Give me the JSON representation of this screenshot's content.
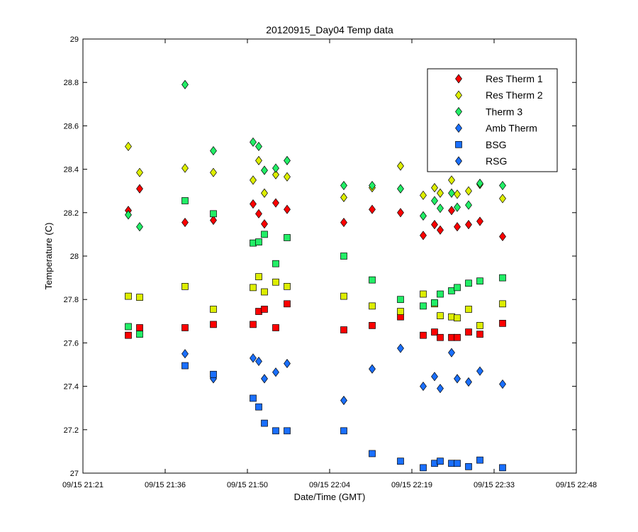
{
  "chart_data": {
    "type": "scatter",
    "title": "20120915_Day04 Temp data",
    "xlabel": "Date/Time (GMT)",
    "ylabel": "Temperature (C)",
    "xlim": [
      "09/15 21:21",
      "09/15 22:48"
    ],
    "ylim": [
      27,
      29
    ],
    "x_tick_labels": [
      "09/15 21:21",
      "09/15 21:36",
      "09/15 21:50",
      "09/15 22:04",
      "09/15 22:19",
      "09/15 22:33",
      "09/15 22:48"
    ],
    "y_tick_labels": [
      "27",
      "27.2",
      "27.4",
      "27.6",
      "27.8",
      "28",
      "28.2",
      "28.4",
      "28.6",
      "28.8",
      "29"
    ],
    "grid": false,
    "legend_position": "top-right",
    "series": [
      {
        "name": "Res Therm 1",
        "color": "#ff0000",
        "marker": "diamond",
        "points": [
          [
            "09/15 21:29",
            28.21
          ],
          [
            "09/15 21:31",
            28.31
          ],
          [
            "09/15 21:39",
            28.155
          ],
          [
            "09/15 21:44",
            28.165
          ],
          [
            "09/15 21:51",
            28.24
          ],
          [
            "09/15 21:52",
            28.195
          ],
          [
            "09/15 21:53",
            28.148
          ],
          [
            "09/15 21:55",
            28.245
          ],
          [
            "09/15 21:57",
            28.215
          ],
          [
            "09/15 22:07",
            28.155
          ],
          [
            "09/15 22:12",
            28.215
          ],
          [
            "09/15 22:17",
            28.2
          ],
          [
            "09/15 22:21",
            28.095
          ],
          [
            "09/15 22:23",
            28.145
          ],
          [
            "09/15 22:24",
            28.12
          ],
          [
            "09/15 22:26",
            28.21
          ],
          [
            "09/15 22:27",
            28.135
          ],
          [
            "09/15 22:29",
            28.145
          ],
          [
            "09/15 22:31",
            28.16
          ],
          [
            "09/15 22:35",
            28.09
          ]
        ]
      },
      {
        "name": "Res Therm 2",
        "color": "#ddee00",
        "marker": "diamond",
        "points": [
          [
            "09/15 21:29",
            28.505
          ],
          [
            "09/15 21:31",
            28.385
          ],
          [
            "09/15 21:39",
            28.405
          ],
          [
            "09/15 21:44",
            28.385
          ],
          [
            "09/15 21:51",
            28.35
          ],
          [
            "09/15 21:52",
            28.44
          ],
          [
            "09/15 21:53",
            28.29
          ],
          [
            "09/15 21:55",
            28.375
          ],
          [
            "09/15 21:57",
            28.365
          ],
          [
            "09/15 22:07",
            28.27
          ],
          [
            "09/15 22:12",
            28.315
          ],
          [
            "09/15 22:17",
            28.415
          ],
          [
            "09/15 22:21",
            28.28
          ],
          [
            "09/15 22:23",
            28.315
          ],
          [
            "09/15 22:24",
            28.29
          ],
          [
            "09/15 22:26",
            28.35
          ],
          [
            "09/15 22:27",
            28.285
          ],
          [
            "09/15 22:29",
            28.3
          ],
          [
            "09/15 22:31",
            28.33
          ],
          [
            "09/15 22:35",
            28.265
          ]
        ]
      },
      {
        "name": "Therm 3",
        "color": "#22ee66",
        "marker": "diamond",
        "points": [
          [
            "09/15 21:29",
            28.19
          ],
          [
            "09/15 21:31",
            28.135
          ],
          [
            "09/15 21:39",
            28.79
          ],
          [
            "09/15 21:44",
            28.485
          ],
          [
            "09/15 21:51",
            28.525
          ],
          [
            "09/15 21:52",
            28.505
          ],
          [
            "09/15 21:53",
            28.395
          ],
          [
            "09/15 21:55",
            28.405
          ],
          [
            "09/15 21:57",
            28.44
          ],
          [
            "09/15 22:07",
            28.325
          ],
          [
            "09/15 22:12",
            28.325
          ],
          [
            "09/15 22:17",
            28.31
          ],
          [
            "09/15 22:21",
            28.185
          ],
          [
            "09/15 22:23",
            28.255
          ],
          [
            "09/15 22:24",
            28.22
          ],
          [
            "09/15 22:26",
            28.29
          ],
          [
            "09/15 22:27",
            28.225
          ],
          [
            "09/15 22:29",
            28.235
          ],
          [
            "09/15 22:31",
            28.335
          ],
          [
            "09/15 22:35",
            28.325
          ]
        ]
      },
      {
        "name": "Amb Therm",
        "color": "#1a6fff",
        "marker": "diamond",
        "points": [
          [
            "09/15 21:39",
            27.55
          ],
          [
            "09/15 21:44",
            27.435
          ],
          [
            "09/15 21:51",
            27.53
          ],
          [
            "09/15 21:52",
            27.515
          ],
          [
            "09/15 21:53",
            27.435
          ],
          [
            "09/15 21:55",
            27.465
          ],
          [
            "09/15 21:57",
            27.505
          ],
          [
            "09/15 22:07",
            27.335
          ],
          [
            "09/15 22:12",
            27.48
          ],
          [
            "09/15 22:17",
            27.575
          ],
          [
            "09/15 22:21",
            27.4
          ],
          [
            "09/15 22:23",
            27.445
          ],
          [
            "09/15 22:24",
            27.39
          ],
          [
            "09/15 22:26",
            27.555
          ],
          [
            "09/15 22:27",
            27.435
          ],
          [
            "09/15 22:29",
            27.42
          ],
          [
            "09/15 22:31",
            27.47
          ],
          [
            "09/15 22:35",
            27.41
          ]
        ]
      },
      {
        "name": "BSG",
        "color": "#1a6fff",
        "marker": "square",
        "points": [
          [
            "09/15 21:39",
            27.495
          ],
          [
            "09/15 21:44",
            27.455
          ],
          [
            "09/15 21:51",
            27.345
          ],
          [
            "09/15 21:52",
            27.305
          ],
          [
            "09/15 21:53",
            27.23
          ],
          [
            "09/15 21:55",
            27.195
          ],
          [
            "09/15 21:57",
            27.195
          ],
          [
            "09/15 22:07",
            27.195
          ],
          [
            "09/15 22:12",
            27.09
          ],
          [
            "09/15 22:17",
            27.055
          ],
          [
            "09/15 22:21",
            27.025
          ],
          [
            "09/15 22:23",
            27.045
          ],
          [
            "09/15 22:24",
            27.055
          ],
          [
            "09/15 22:26",
            27.045
          ],
          [
            "09/15 22:27",
            27.045
          ],
          [
            "09/15 22:29",
            27.03
          ],
          [
            "09/15 22:31",
            27.06
          ],
          [
            "09/15 22:35",
            27.025
          ]
        ]
      },
      {
        "name": "RSG",
        "color": "#1a6fff",
        "marker": "diamond",
        "points": []
      },
      {
        "name": "",
        "color": "#ff0000",
        "marker": "square",
        "points": [
          [
            "09/15 21:29",
            27.635
          ],
          [
            "09/15 21:31",
            27.67
          ],
          [
            "09/15 21:39",
            27.67
          ],
          [
            "09/15 21:44",
            27.685
          ],
          [
            "09/15 21:51",
            27.685
          ],
          [
            "09/15 21:52",
            27.745
          ],
          [
            "09/15 21:53",
            27.755
          ],
          [
            "09/15 21:55",
            27.67
          ],
          [
            "09/15 21:57",
            27.78
          ],
          [
            "09/15 22:07",
            27.66
          ],
          [
            "09/15 22:12",
            27.68
          ],
          [
            "09/15 22:17",
            27.72
          ],
          [
            "09/15 22:21",
            27.635
          ],
          [
            "09/15 22:23",
            27.65
          ],
          [
            "09/15 22:24",
            27.625
          ],
          [
            "09/15 22:26",
            27.625
          ],
          [
            "09/15 22:27",
            27.625
          ],
          [
            "09/15 22:29",
            27.65
          ],
          [
            "09/15 22:31",
            27.64
          ],
          [
            "09/15 22:35",
            27.69
          ]
        ]
      },
      {
        "name": "",
        "color": "#ddee00",
        "marker": "square",
        "points": [
          [
            "09/15 21:29",
            27.815
          ],
          [
            "09/15 21:31",
            27.81
          ],
          [
            "09/15 21:39",
            27.86
          ],
          [
            "09/15 21:44",
            27.755
          ],
          [
            "09/15 21:51",
            27.855
          ],
          [
            "09/15 21:52",
            27.905
          ],
          [
            "09/15 21:53",
            27.835
          ],
          [
            "09/15 21:55",
            27.88
          ],
          [
            "09/15 21:57",
            27.86
          ],
          [
            "09/15 22:07",
            27.815
          ],
          [
            "09/15 22:12",
            27.77
          ],
          [
            "09/15 22:17",
            27.745
          ],
          [
            "09/15 22:21",
            27.825
          ],
          [
            "09/15 22:23",
            27.78
          ],
          [
            "09/15 22:24",
            27.725
          ],
          [
            "09/15 22:26",
            27.72
          ],
          [
            "09/15 22:27",
            27.715
          ],
          [
            "09/15 22:29",
            27.755
          ],
          [
            "09/15 22:31",
            27.68
          ],
          [
            "09/15 22:35",
            27.78
          ]
        ]
      },
      {
        "name": "",
        "color": "#22ee66",
        "marker": "square",
        "points": [
          [
            "09/15 21:29",
            27.675
          ],
          [
            "09/15 21:31",
            27.64
          ],
          [
            "09/15 21:39",
            28.255
          ],
          [
            "09/15 21:44",
            28.195
          ],
          [
            "09/15 21:51",
            28.06
          ],
          [
            "09/15 21:52",
            28.065
          ],
          [
            "09/15 21:53",
            28.1
          ],
          [
            "09/15 21:55",
            27.965
          ],
          [
            "09/15 21:57",
            28.085
          ],
          [
            "09/15 22:07",
            28.0
          ],
          [
            "09/15 22:12",
            27.89
          ],
          [
            "09/15 22:17",
            27.8
          ],
          [
            "09/15 22:21",
            27.77
          ],
          [
            "09/15 22:23",
            27.785
          ],
          [
            "09/15 22:24",
            27.825
          ],
          [
            "09/15 22:26",
            27.84
          ],
          [
            "09/15 22:27",
            27.855
          ],
          [
            "09/15 22:29",
            27.875
          ],
          [
            "09/15 22:31",
            27.885
          ],
          [
            "09/15 22:35",
            27.9
          ]
        ]
      }
    ]
  }
}
